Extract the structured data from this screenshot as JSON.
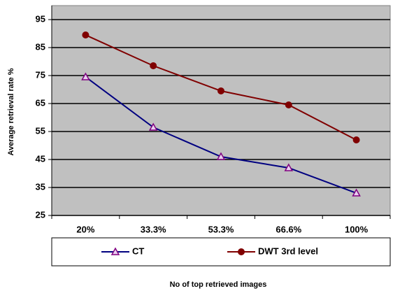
{
  "chart_data": {
    "type": "line",
    "x_label": "No of top retrieved images",
    "y_label": "Average retrieval rate %",
    "categories": [
      "20%",
      "33.3%",
      "53.3%",
      "66.6%",
      "100%"
    ],
    "series": [
      {
        "name": "CT",
        "color": "#000080",
        "marker": "triangle",
        "marker_color": "#800080",
        "values": [
          74.5,
          56.5,
          46,
          42,
          33
        ]
      },
      {
        "name": "DWT 3rd level",
        "color": "#800000",
        "marker": "circle",
        "marker_color": "#800000",
        "values": [
          89.5,
          78.5,
          69.5,
          64.5,
          52
        ]
      }
    ],
    "ylim": [
      25,
      100
    ],
    "yticks": [
      25,
      35,
      45,
      55,
      65,
      75,
      85,
      95
    ],
    "grid": true,
    "plot_background": "#c0c0c0",
    "legend": "bottom"
  }
}
